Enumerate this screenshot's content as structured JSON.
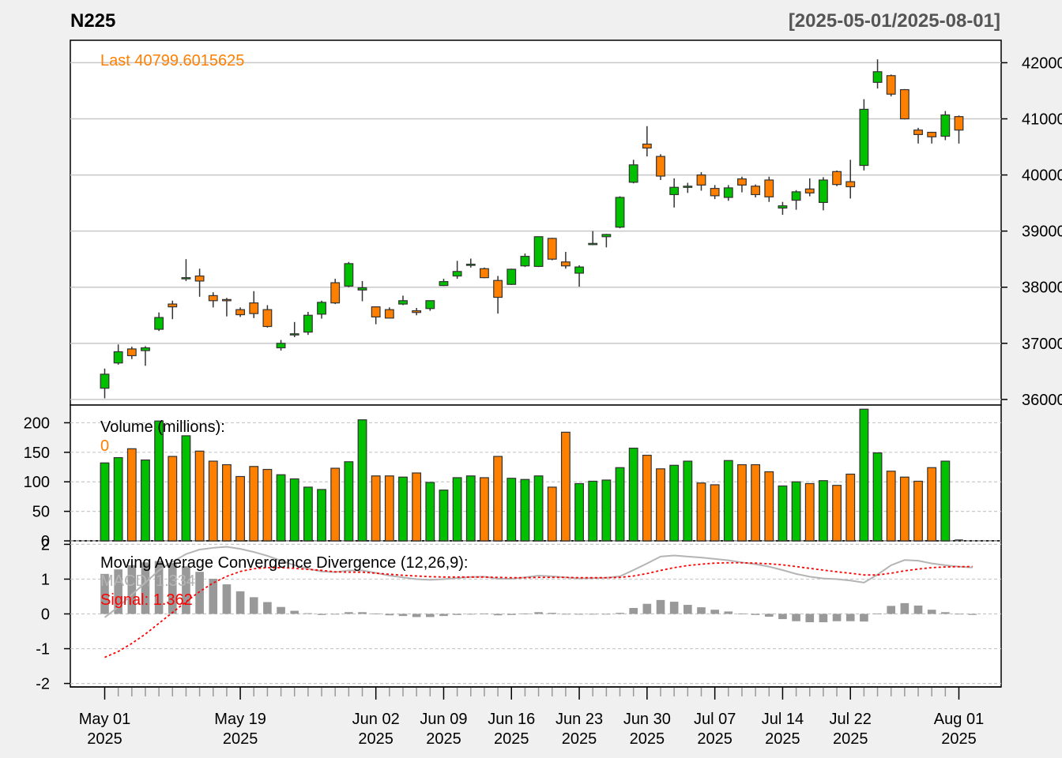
{
  "header": {
    "title": "N225",
    "date_range": "[2025-05-01/2025-08-01]"
  },
  "colors": {
    "up": "#00c000",
    "down": "#ff7f00",
    "last": "#ff7f00",
    "macd_line": "#b4b4b4",
    "signal_line": "#ff0000",
    "histogram": "#999999",
    "grid": "#c8c8c8",
    "background": "#f0f0f0",
    "panel_bg": "#ffffff"
  },
  "price_panel": {
    "last_label": "Last 40799.6015625",
    "y_ticks": [
      "36000",
      "37000",
      "38000",
      "39000",
      "40000",
      "41000",
      "42000"
    ]
  },
  "volume_panel": {
    "label": "Volume (millions):",
    "value": "0",
    "y_ticks": [
      "0",
      "50",
      "100",
      "150",
      "200"
    ]
  },
  "macd_panel": {
    "label": "Moving Average Convergence Divergence (12,26,9):",
    "macd_label": "MACD: 1.334",
    "signal_label": "Signal: 1.362",
    "y_ticks": [
      "-2",
      "-1",
      "0",
      "1",
      "2"
    ]
  },
  "x_axis": {
    "labels": [
      {
        "d1": "May 01",
        "d2": "2025",
        "index": 0
      },
      {
        "d1": "May 19",
        "d2": "2025",
        "index": 10
      },
      {
        "d1": "Jun 02",
        "d2": "2025",
        "index": 20
      },
      {
        "d1": "Jun 09",
        "d2": "2025",
        "index": 25
      },
      {
        "d1": "Jun 16",
        "d2": "2025",
        "index": 30
      },
      {
        "d1": "Jun 23",
        "d2": "2025",
        "index": 35
      },
      {
        "d1": "Jun 30",
        "d2": "2025",
        "index": 40
      },
      {
        "d1": "Jul 07",
        "d2": "2025",
        "index": 45
      },
      {
        "d1": "Jul 14",
        "d2": "2025",
        "index": 50
      },
      {
        "d1": "Jul 22",
        "d2": "2025",
        "index": 55
      },
      {
        "d1": "Aug 01",
        "d2": "2025",
        "index": 63
      }
    ]
  },
  "chart_data": {
    "type": "candlestick",
    "symbol": "N225",
    "price_range": [
      35900,
      42400
    ],
    "volume_range": [
      0,
      230
    ],
    "macd_range": [
      -2.1,
      2.1
    ],
    "candles": [
      {
        "o": 36200,
        "h": 36550,
        "l": 36020,
        "c": 36450,
        "v": 132
      },
      {
        "o": 36650,
        "h": 36980,
        "l": 36620,
        "c": 36850,
        "v": 141
      },
      {
        "o": 36900,
        "h": 36940,
        "l": 36720,
        "c": 36780,
        "v": 156
      },
      {
        "o": 36870,
        "h": 36950,
        "l": 36600,
        "c": 36920,
        "v": 137
      },
      {
        "o": 37250,
        "h": 37550,
        "l": 37220,
        "c": 37460,
        "v": 203
      },
      {
        "o": 37700,
        "h": 37760,
        "l": 37430,
        "c": 37650,
        "v": 143
      },
      {
        "o": 38150,
        "h": 38500,
        "l": 38110,
        "c": 38170,
        "v": 178
      },
      {
        "o": 38200,
        "h": 38330,
        "l": 37830,
        "c": 38110,
        "v": 152
      },
      {
        "o": 37850,
        "h": 37910,
        "l": 37640,
        "c": 37760,
        "v": 135
      },
      {
        "o": 37780,
        "h": 37810,
        "l": 37480,
        "c": 37760,
        "v": 129
      },
      {
        "o": 37600,
        "h": 37640,
        "l": 37470,
        "c": 37510,
        "v": 109
      },
      {
        "o": 37720,
        "h": 37930,
        "l": 37450,
        "c": 37530,
        "v": 126
      },
      {
        "o": 37600,
        "h": 37680,
        "l": 37280,
        "c": 37300,
        "v": 121
      },
      {
        "o": 36920,
        "h": 37060,
        "l": 36870,
        "c": 37000,
        "v": 112
      },
      {
        "o": 37150,
        "h": 37380,
        "l": 37110,
        "c": 37170,
        "v": 105
      },
      {
        "o": 37200,
        "h": 37560,
        "l": 37150,
        "c": 37500,
        "v": 91
      },
      {
        "o": 37520,
        "h": 37760,
        "l": 37440,
        "c": 37730,
        "v": 87
      },
      {
        "o": 38080,
        "h": 38150,
        "l": 37700,
        "c": 37720,
        "v": 123
      },
      {
        "o": 38020,
        "h": 38450,
        "l": 38000,
        "c": 38420,
        "v": 134
      },
      {
        "o": 37950,
        "h": 38110,
        "l": 37750,
        "c": 37990,
        "v": 205
      },
      {
        "o": 37650,
        "h": 37660,
        "l": 37340,
        "c": 37470,
        "v": 110
      },
      {
        "o": 37600,
        "h": 37640,
        "l": 37450,
        "c": 37450,
        "v": 110
      },
      {
        "o": 37700,
        "h": 37850,
        "l": 37680,
        "c": 37760,
        "v": 108
      },
      {
        "o": 37580,
        "h": 37630,
        "l": 37500,
        "c": 37550,
        "v": 115
      },
      {
        "o": 37620,
        "h": 37750,
        "l": 37580,
        "c": 37760,
        "v": 99
      },
      {
        "o": 38030,
        "h": 38150,
        "l": 38020,
        "c": 38100,
        "v": 86
      },
      {
        "o": 38200,
        "h": 38470,
        "l": 38150,
        "c": 38280,
        "v": 107
      },
      {
        "o": 38400,
        "h": 38510,
        "l": 38350,
        "c": 38410,
        "v": 110
      },
      {
        "o": 38330,
        "h": 38350,
        "l": 38160,
        "c": 38170,
        "v": 107
      },
      {
        "o": 38120,
        "h": 38200,
        "l": 37530,
        "c": 37820,
        "v": 143
      },
      {
        "o": 38050,
        "h": 38330,
        "l": 38040,
        "c": 38320,
        "v": 106
      },
      {
        "o": 38380,
        "h": 38600,
        "l": 38360,
        "c": 38550,
        "v": 104
      },
      {
        "o": 38370,
        "h": 38900,
        "l": 38360,
        "c": 38900,
        "v": 110
      },
      {
        "o": 38870,
        "h": 38880,
        "l": 38480,
        "c": 38500,
        "v": 91
      },
      {
        "o": 38450,
        "h": 38630,
        "l": 38330,
        "c": 38380,
        "v": 184
      },
      {
        "o": 38250,
        "h": 38390,
        "l": 38010,
        "c": 38360,
        "v": 97
      },
      {
        "o": 38760,
        "h": 39000,
        "l": 38750,
        "c": 38780,
        "v": 101
      },
      {
        "o": 38900,
        "h": 38950,
        "l": 38710,
        "c": 38940,
        "v": 103
      },
      {
        "o": 39070,
        "h": 39620,
        "l": 39050,
        "c": 39600,
        "v": 124
      },
      {
        "o": 39870,
        "h": 40270,
        "l": 39850,
        "c": 40180,
        "v": 157
      },
      {
        "o": 40550,
        "h": 40870,
        "l": 40330,
        "c": 40480,
        "v": 145
      },
      {
        "o": 40330,
        "h": 40370,
        "l": 39910,
        "c": 39980,
        "v": 122
      },
      {
        "o": 39650,
        "h": 39940,
        "l": 39420,
        "c": 39780,
        "v": 128
      },
      {
        "o": 39780,
        "h": 39860,
        "l": 39680,
        "c": 39800,
        "v": 135
      },
      {
        "o": 40000,
        "h": 40050,
        "l": 39720,
        "c": 39820,
        "v": 98
      },
      {
        "o": 39760,
        "h": 39820,
        "l": 39570,
        "c": 39630,
        "v": 95
      },
      {
        "o": 39600,
        "h": 39820,
        "l": 39540,
        "c": 39770,
        "v": 136
      },
      {
        "o": 39930,
        "h": 39970,
        "l": 39690,
        "c": 39820,
        "v": 129
      },
      {
        "o": 39800,
        "h": 39830,
        "l": 39600,
        "c": 39650,
        "v": 129
      },
      {
        "o": 39910,
        "h": 39970,
        "l": 39520,
        "c": 39610,
        "v": 117
      },
      {
        "o": 39410,
        "h": 39520,
        "l": 39290,
        "c": 39450,
        "v": 93
      },
      {
        "o": 39550,
        "h": 39730,
        "l": 39380,
        "c": 39700,
        "v": 100
      },
      {
        "o": 39750,
        "h": 39940,
        "l": 39620,
        "c": 39680,
        "v": 97
      },
      {
        "o": 39510,
        "h": 39960,
        "l": 39370,
        "c": 39910,
        "v": 102
      },
      {
        "o": 40060,
        "h": 40080,
        "l": 39800,
        "c": 39830,
        "v": 94
      },
      {
        "o": 39880,
        "h": 40270,
        "l": 39580,
        "c": 39790,
        "v": 113
      },
      {
        "o": 40170,
        "h": 41350,
        "l": 40080,
        "c": 41170,
        "v": 223
      },
      {
        "o": 41650,
        "h": 42060,
        "l": 41540,
        "c": 41840,
        "v": 149
      },
      {
        "o": 41770,
        "h": 41790,
        "l": 41400,
        "c": 41440,
        "v": 118
      },
      {
        "o": 41520,
        "h": 41530,
        "l": 40990,
        "c": 41000,
        "v": 108
      },
      {
        "o": 40800,
        "h": 40840,
        "l": 40560,
        "c": 40720,
        "v": 101
      },
      {
        "o": 40760,
        "h": 40770,
        "l": 40560,
        "c": 40680,
        "v": 124
      },
      {
        "o": 40690,
        "h": 41140,
        "l": 40620,
        "c": 41070,
        "v": 135
      },
      {
        "o": 41040,
        "h": 41060,
        "l": 40560,
        "c": 40800,
        "v": 0
      }
    ],
    "macd": [
      -0.1,
      0.2,
      0.55,
      0.9,
      1.25,
      1.5,
      1.72,
      1.85,
      1.9,
      1.93,
      1.87,
      1.78,
      1.67,
      1.53,
      1.4,
      1.3,
      1.22,
      1.2,
      1.25,
      1.25,
      1.18,
      1.1,
      1.05,
      1.0,
      0.98,
      1.0,
      1.03,
      1.06,
      1.07,
      1.01,
      1.01,
      1.05,
      1.1,
      1.08,
      1.05,
      1.02,
      1.03,
      1.04,
      1.08,
      1.26,
      1.45,
      1.65,
      1.68,
      1.65,
      1.62,
      1.58,
      1.54,
      1.48,
      1.43,
      1.36,
      1.26,
      1.15,
      1.07,
      1.02,
      1.0,
      0.96,
      0.9,
      1.13,
      1.4,
      1.55,
      1.53,
      1.45,
      1.4,
      1.36,
      1.334
    ],
    "signal": [
      -1.25,
      -1.08,
      -0.85,
      -0.58,
      -0.27,
      0.04,
      0.35,
      0.64,
      0.89,
      1.08,
      1.22,
      1.3,
      1.33,
      1.33,
      1.31,
      1.28,
      1.25,
      1.21,
      1.2,
      1.2,
      1.17,
      1.14,
      1.11,
      1.09,
      1.07,
      1.06,
      1.06,
      1.06,
      1.06,
      1.05,
      1.04,
      1.04,
      1.05,
      1.05,
      1.05,
      1.04,
      1.04,
      1.04,
      1.05,
      1.09,
      1.16,
      1.25,
      1.33,
      1.39,
      1.43,
      1.46,
      1.47,
      1.47,
      1.46,
      1.44,
      1.41,
      1.36,
      1.31,
      1.26,
      1.21,
      1.17,
      1.12,
      1.12,
      1.17,
      1.24,
      1.29,
      1.33,
      1.35,
      1.357,
      1.362
    ]
  }
}
